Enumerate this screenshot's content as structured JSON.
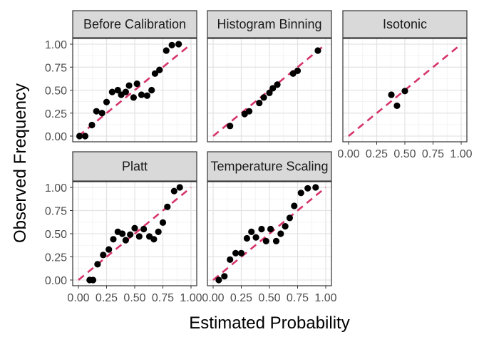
{
  "chart_data": {
    "type": "scatter",
    "layout": "facet-grid",
    "xlabel": "Estimated Probability",
    "ylabel": "Observed Frequency",
    "xlim": [
      0,
      1
    ],
    "ylim": [
      0,
      1
    ],
    "x_ticks": [
      "0.00",
      "0.25",
      "0.50",
      "0.75",
      "1.00"
    ],
    "y_ticks": [
      "0.00",
      "0.25",
      "0.50",
      "0.75",
      "1.00"
    ],
    "grid": true,
    "reference_line": {
      "type": "diagonal y=x",
      "style": "dashed",
      "color": "#d6336c"
    },
    "point_color": "#000000",
    "panels": [
      {
        "title": "Before Calibration",
        "x": [
          0.01,
          0.06,
          0.12,
          0.16,
          0.21,
          0.25,
          0.3,
          0.35,
          0.38,
          0.42,
          0.45,
          0.49,
          0.52,
          0.56,
          0.61,
          0.65,
          0.68,
          0.72,
          0.78,
          0.83,
          0.89
        ],
        "y": [
          0.0,
          0.0,
          0.12,
          0.27,
          0.25,
          0.37,
          0.48,
          0.5,
          0.45,
          0.48,
          0.55,
          0.42,
          0.57,
          0.45,
          0.44,
          0.5,
          0.68,
          0.72,
          0.93,
          0.99,
          1.0
        ]
      },
      {
        "title": "Histogram Binning",
        "x": [
          0.15,
          0.28,
          0.32,
          0.41,
          0.45,
          0.5,
          0.53,
          0.57,
          0.71,
          0.75,
          0.93
        ],
        "y": [
          0.11,
          0.24,
          0.27,
          0.36,
          0.42,
          0.47,
          0.52,
          0.56,
          0.68,
          0.71,
          0.93
        ]
      },
      {
        "title": "Isotonic",
        "x": [
          0.38,
          0.43,
          0.5
        ],
        "y": [
          0.45,
          0.33,
          0.49
        ]
      },
      {
        "title": "Platt",
        "x": [
          0.1,
          0.13,
          0.17,
          0.22,
          0.27,
          0.31,
          0.35,
          0.39,
          0.42,
          0.46,
          0.5,
          0.54,
          0.58,
          0.63,
          0.67,
          0.71,
          0.75,
          0.79,
          0.85,
          0.9
        ],
        "y": [
          0.0,
          0.0,
          0.17,
          0.27,
          0.33,
          0.44,
          0.52,
          0.5,
          0.43,
          0.49,
          0.56,
          0.47,
          0.55,
          0.47,
          0.44,
          0.52,
          0.62,
          0.79,
          0.96,
          1.0
        ]
      },
      {
        "title": "Temperature Scaling",
        "x": [
          0.05,
          0.1,
          0.15,
          0.2,
          0.25,
          0.3,
          0.34,
          0.38,
          0.43,
          0.47,
          0.51,
          0.56,
          0.6,
          0.64,
          0.68,
          0.72,
          0.78,
          0.84,
          0.91
        ],
        "y": [
          0.0,
          0.04,
          0.22,
          0.29,
          0.29,
          0.45,
          0.52,
          0.46,
          0.55,
          0.42,
          0.55,
          0.42,
          0.5,
          0.58,
          0.67,
          0.8,
          0.94,
          0.99,
          1.0
        ]
      }
    ]
  }
}
